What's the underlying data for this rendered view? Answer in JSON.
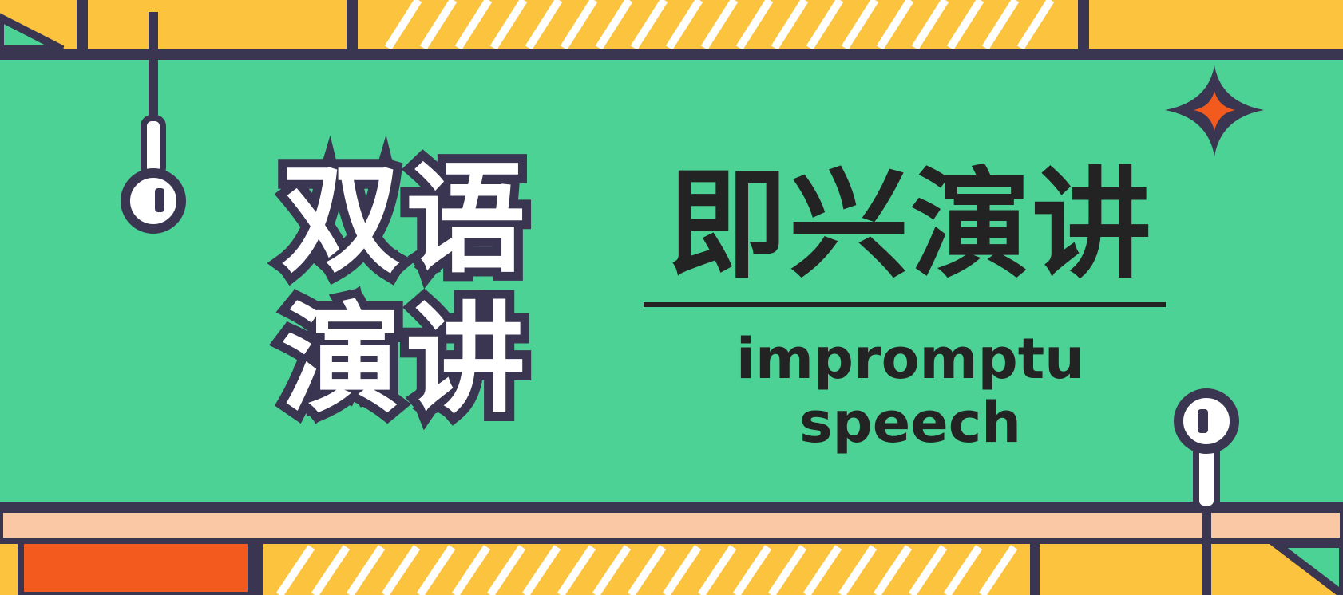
{
  "banner": {
    "bilingual_title": [
      "双语",
      "演讲"
    ],
    "main_title": "即兴演讲",
    "subtitle": [
      "impromptu",
      "speech"
    ]
  },
  "colors": {
    "background_yellow": "#fcc33f",
    "panel_green": "#4dd296",
    "outline_navy": "#3a3551",
    "accent_orange": "#f35b1e",
    "peach_strip": "#fbc8a6",
    "text_dark": "#242323",
    "text_white": "#ffffff"
  },
  "icons": [
    "pin-icon-top",
    "pin-icon-bottom",
    "sparkle-star-icon"
  ]
}
